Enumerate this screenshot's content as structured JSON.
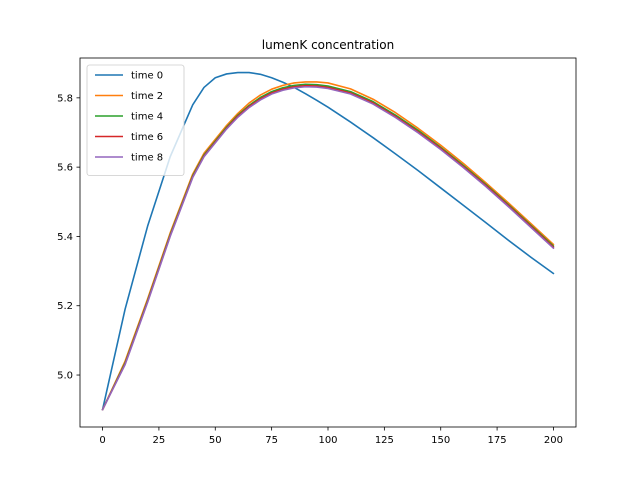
{
  "chart_data": {
    "type": "line",
    "title": "lumenK concentration",
    "xlabel": "",
    "ylabel": "",
    "xlim": [
      -10,
      210
    ],
    "ylim": [
      4.85,
      5.915
    ],
    "xticks": [
      0,
      25,
      50,
      75,
      100,
      125,
      150,
      175,
      200
    ],
    "yticks": [
      5.0,
      5.2,
      5.4,
      5.6,
      5.8
    ],
    "ytick_labels": [
      "5.0",
      "5.2",
      "5.4",
      "5.6",
      "5.8"
    ],
    "grid": false,
    "legend_position": "top-left",
    "x": [
      0,
      10,
      20,
      30,
      40,
      45,
      50,
      55,
      60,
      65,
      70,
      75,
      80,
      85,
      90,
      95,
      100,
      110,
      120,
      130,
      140,
      150,
      160,
      170,
      180,
      190,
      200
    ],
    "series": [
      {
        "name": "time 0",
        "color": "#1f77b4",
        "values": [
          4.9,
          5.19,
          5.43,
          5.63,
          5.78,
          5.83,
          5.858,
          5.869,
          5.873,
          5.873,
          5.868,
          5.858,
          5.845,
          5.83,
          5.812,
          5.793,
          5.773,
          5.73,
          5.685,
          5.638,
          5.59,
          5.54,
          5.49,
          5.44,
          5.389,
          5.34,
          5.293
        ]
      },
      {
        "name": "time 2",
        "color": "#ff7f0e",
        "values": [
          4.9,
          5.04,
          5.22,
          5.41,
          5.58,
          5.64,
          5.68,
          5.72,
          5.755,
          5.785,
          5.808,
          5.825,
          5.836,
          5.843,
          5.846,
          5.846,
          5.843,
          5.826,
          5.796,
          5.757,
          5.712,
          5.663,
          5.611,
          5.555,
          5.497,
          5.437,
          5.377
        ]
      },
      {
        "name": "time 4",
        "color": "#2ca02c",
        "values": [
          4.9,
          5.035,
          5.215,
          5.405,
          5.575,
          5.635,
          5.675,
          5.715,
          5.75,
          5.778,
          5.801,
          5.818,
          5.829,
          5.836,
          5.839,
          5.838,
          5.834,
          5.818,
          5.789,
          5.75,
          5.706,
          5.657,
          5.605,
          5.55,
          5.492,
          5.432,
          5.372
        ]
      },
      {
        "name": "time 6",
        "color": "#d62728",
        "values": [
          4.9,
          5.032,
          5.212,
          5.402,
          5.572,
          5.632,
          5.672,
          5.712,
          5.747,
          5.775,
          5.797,
          5.814,
          5.825,
          5.832,
          5.835,
          5.834,
          5.83,
          5.814,
          5.785,
          5.746,
          5.702,
          5.654,
          5.602,
          5.547,
          5.489,
          5.429,
          5.369
        ]
      },
      {
        "name": "time 8",
        "color": "#9467bd",
        "values": [
          4.9,
          5.03,
          5.21,
          5.4,
          5.57,
          5.63,
          5.67,
          5.71,
          5.744,
          5.772,
          5.794,
          5.811,
          5.822,
          5.829,
          5.832,
          5.831,
          5.827,
          5.811,
          5.782,
          5.743,
          5.699,
          5.651,
          5.599,
          5.544,
          5.486,
          5.426,
          5.366
        ]
      }
    ]
  }
}
